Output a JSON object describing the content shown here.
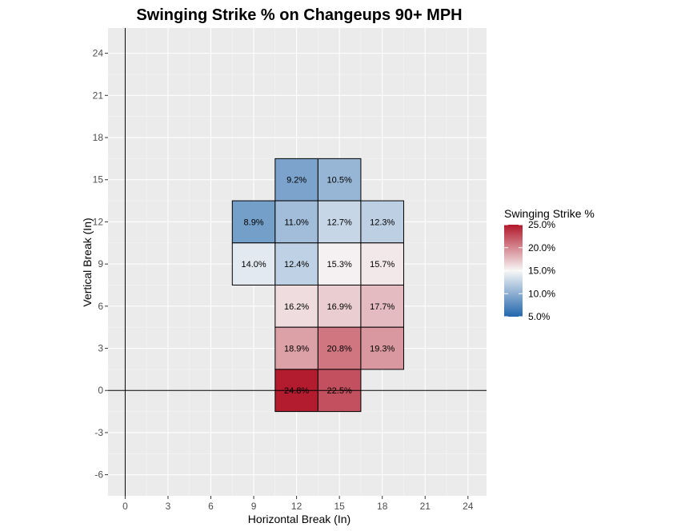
{
  "chart_data": {
    "type": "heatmap",
    "title": "Swinging Strike % on Changeups 90+ MPH",
    "xlabel": "Horizontal Break (In)",
    "ylabel": "Vertical Break (In)",
    "xlim": [
      -1.2,
      25.3
    ],
    "ylim": [
      -7.5,
      25.8
    ],
    "x_ticks": [
      0,
      3,
      6,
      9,
      12,
      15,
      18,
      21,
      24
    ],
    "y_ticks": [
      -6,
      -3,
      0,
      3,
      6,
      9,
      12,
      15,
      18,
      21,
      24
    ],
    "bin_size": 3,
    "grid": true,
    "reference_lines": {
      "x": 0,
      "y": 0
    },
    "legend": {
      "title": "Swinging Strike %",
      "position": "right",
      "ticks": [
        "5.0%",
        "10.0%",
        "15.0%",
        "20.0%",
        "25.0%"
      ],
      "tick_values": [
        5,
        10,
        15,
        20,
        25
      ],
      "range": [
        5,
        25
      ],
      "colors": {
        "low": "#2166ac",
        "mid": "#f7f7f7",
        "high": "#b2182b"
      }
    },
    "cells": [
      {
        "x": 12,
        "y": 15,
        "value": 9.2,
        "label": "9.2%"
      },
      {
        "x": 15,
        "y": 15,
        "value": 10.5,
        "label": "10.5%"
      },
      {
        "x": 9,
        "y": 12,
        "value": 8.9,
        "label": "8.9%"
      },
      {
        "x": 12,
        "y": 12,
        "value": 11.0,
        "label": "11.0%"
      },
      {
        "x": 15,
        "y": 12,
        "value": 12.7,
        "label": "12.7%"
      },
      {
        "x": 18,
        "y": 12,
        "value": 12.3,
        "label": "12.3%"
      },
      {
        "x": 9,
        "y": 9,
        "value": 14.0,
        "label": "14.0%"
      },
      {
        "x": 12,
        "y": 9,
        "value": 12.4,
        "label": "12.4%"
      },
      {
        "x": 15,
        "y": 9,
        "value": 15.3,
        "label": "15.3%"
      },
      {
        "x": 18,
        "y": 9,
        "value": 15.7,
        "label": "15.7%"
      },
      {
        "x": 12,
        "y": 6,
        "value": 16.2,
        "label": "16.2%"
      },
      {
        "x": 15,
        "y": 6,
        "value": 16.9,
        "label": "16.9%"
      },
      {
        "x": 18,
        "y": 6,
        "value": 17.7,
        "label": "17.7%"
      },
      {
        "x": 12,
        "y": 3,
        "value": 18.9,
        "label": "18.9%"
      },
      {
        "x": 15,
        "y": 3,
        "value": 20.8,
        "label": "20.8%"
      },
      {
        "x": 18,
        "y": 3,
        "value": 19.3,
        "label": "19.3%"
      },
      {
        "x": 12,
        "y": 0,
        "value": 24.8,
        "label": "24.8%"
      },
      {
        "x": 15,
        "y": 0,
        "value": 22.5,
        "label": "22.5%"
      }
    ]
  }
}
